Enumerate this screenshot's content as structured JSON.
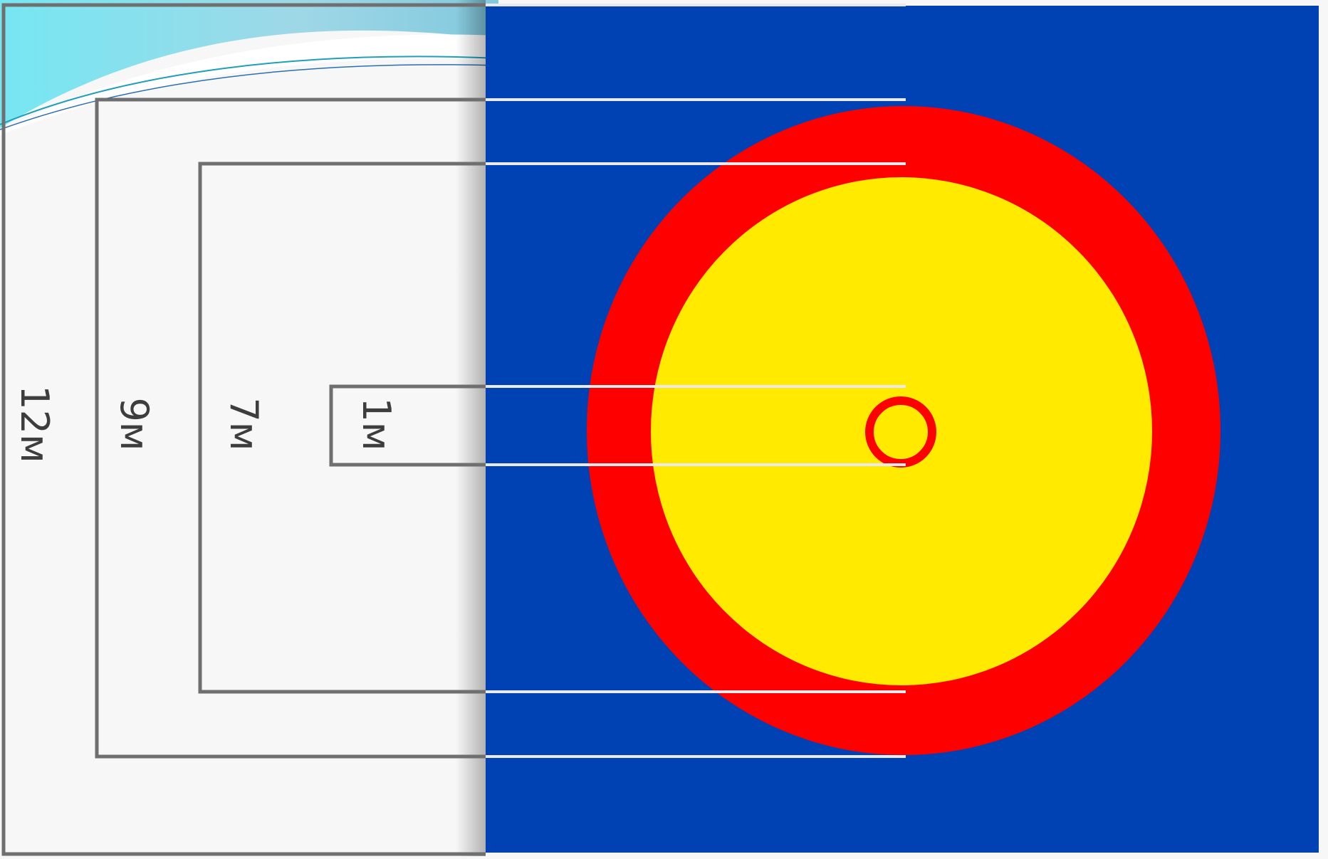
{
  "diagram": {
    "dimension_labels": {
      "outer": "12м",
      "second": "9м",
      "third": "7м",
      "inner": "1м"
    },
    "colors": {
      "paper": "#f7f7f7",
      "bracket_line": "#6f6f6f",
      "mat_background": "#0041b4",
      "outer_ring": "#ff0000",
      "inner_area": "#ffea00",
      "center_circle": "#ff0000",
      "guide_line": "#e9e9ee",
      "header_swoosh": "#5fe0ec"
    }
  }
}
